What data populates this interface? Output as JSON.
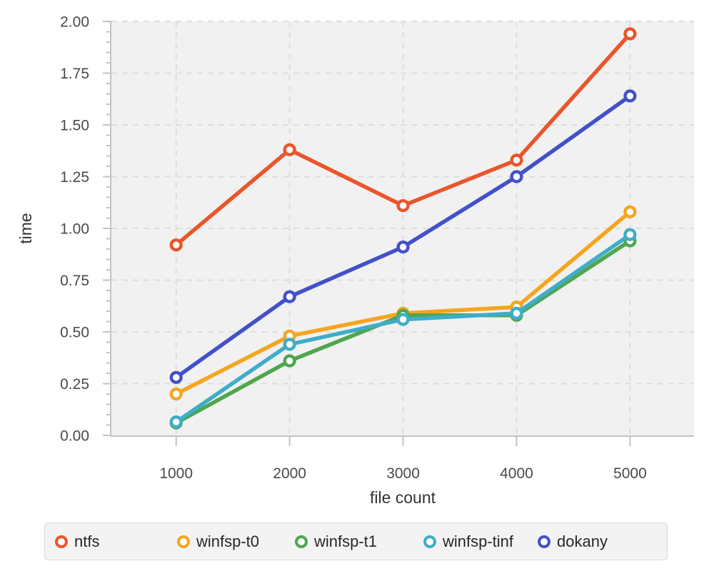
{
  "chart_data": {
    "type": "line",
    "x": [
      1000,
      2000,
      3000,
      4000,
      5000
    ],
    "xtick_labels": [
      "1000",
      "2000",
      "3000",
      "4000",
      "5000"
    ],
    "yticks": [
      0,
      0.25,
      0.5,
      0.75,
      1,
      1.25,
      1.5,
      1.75,
      2
    ],
    "ytick_labels": [
      "0.00",
      "0.25",
      "0.50",
      "0.75",
      "1.00",
      "1.25",
      "1.50",
      "1.75",
      "2.00"
    ],
    "ylim": [
      0,
      2
    ],
    "xlabel": "file count",
    "ylabel": "time",
    "grid": "dashed-major",
    "marker": "open-circle",
    "legend_position": "bottom",
    "series": [
      {
        "name": "ntfs",
        "color": "#e9562b",
        "values": [
          0.92,
          1.38,
          1.11,
          1.33,
          1.94
        ]
      },
      {
        "name": "winfsp-t0",
        "color": "#f6a51f",
        "values": [
          0.2,
          0.48,
          0.59,
          0.62,
          1.08
        ]
      },
      {
        "name": "winfsp-t1",
        "color": "#4ea64f",
        "values": [
          0.06,
          0.36,
          0.58,
          0.58,
          0.94
        ]
      },
      {
        "name": "winfsp-tinf",
        "color": "#3fadc7",
        "values": [
          0.065,
          0.44,
          0.56,
          0.59,
          0.97
        ]
      },
      {
        "name": "dokany",
        "color": "#4351c9",
        "values": [
          0.28,
          0.67,
          0.91,
          1.25,
          1.64
        ]
      }
    ]
  },
  "colors": {
    "plot_bg": "#f1f1f2",
    "grid": "#dddddd",
    "axis_line": "#c3c3c6",
    "tick": "#c3c3c6",
    "tick_label": "#4a4a4a",
    "axis_title": "#333333",
    "legend_bg": "#f3f3f4",
    "legend_border": "#d8d8da",
    "legend_text": "#26272a"
  }
}
